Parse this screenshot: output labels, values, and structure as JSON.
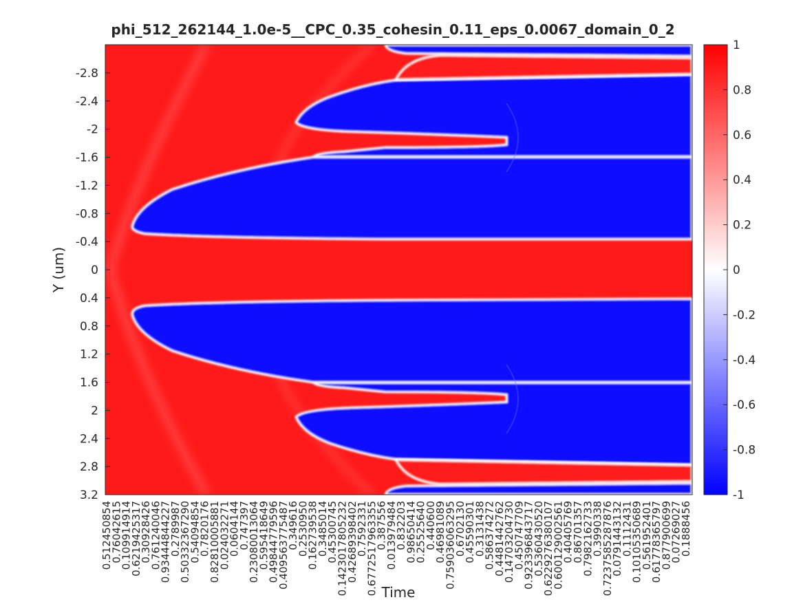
{
  "chart_data": {
    "type": "heatmap",
    "title": "phi_512_262144_1.0e-5__CPC_0.35_cohesin_0.11_eps_0.0067_domain_0_2",
    "xlabel": "Time",
    "ylabel": "Y (um)",
    "ylim": [
      -3.2,
      3.2
    ],
    "y_reversed": true,
    "yticks": [
      -2.8,
      -2.4,
      -2,
      -1.6,
      -1.2,
      -0.8,
      -0.4,
      0,
      0.4,
      0.8,
      1.2,
      1.6,
      2,
      2.4,
      2.8,
      3.2
    ],
    "ytick_labels": [
      "-2.8",
      "-2.4",
      "-2",
      "-1.6",
      "-1.2",
      "-0.8",
      "-0.4",
      "0",
      "0.4",
      "0.8",
      "1.2",
      "1.6",
      "2",
      "2.4",
      "2.8",
      "3.2"
    ],
    "xtick_labels": "dense overlapping tick labels (illegible)",
    "colorbar": {
      "min": -1,
      "max": 1,
      "ticks": [
        1,
        0.8,
        0.6,
        0.4,
        0.2,
        0,
        -0.2,
        -0.4,
        -0.6,
        -0.8,
        -1
      ],
      "tick_labels": [
        "1",
        "0.8",
        "0.6",
        "0.4",
        "0.2",
        "0",
        "-0.2",
        "-0.4",
        "-0.6",
        "-0.8",
        "-1"
      ],
      "colormap": "blue-white-red"
    },
    "colors": {
      "high": "#ff1a1a",
      "low": "#0a0aff",
      "mid": "#ffffff"
    }
  }
}
